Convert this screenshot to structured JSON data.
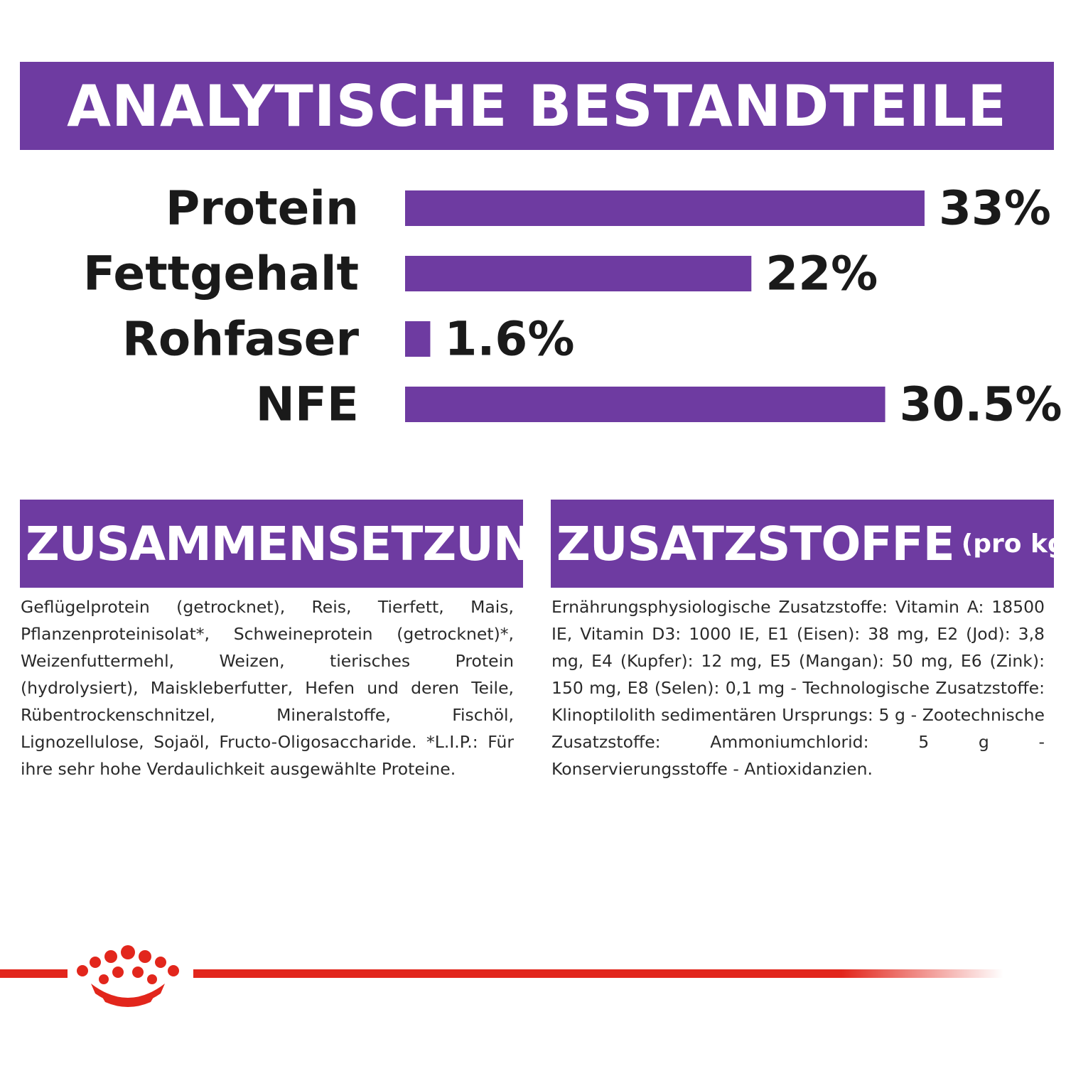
{
  "header": {
    "title": "ANALYTISCHE BESTANDTEILE"
  },
  "chart_data": {
    "type": "bar",
    "orientation": "horizontal",
    "categories": [
      "Protein",
      "Fettgehalt",
      "Rohfaser",
      "NFE"
    ],
    "values": [
      33,
      22,
      1.6,
      30.5
    ],
    "value_labels": [
      "33%",
      "22%",
      "1.6%",
      "30.5%"
    ],
    "title": "ANALYTISCHE BESTANDTEILE",
    "xlabel": "",
    "ylabel": "",
    "bar_color": "#6e3ba1"
  },
  "composition": {
    "title": "ZUSAMMENSETZUNG",
    "text": "Geflügelprotein (getrocknet), Reis, Tierfett, Mais, Pflanzenproteinisolat*, Schweineprotein (getrocknet)*, Weizenfuttermehl, Weizen, tierisches Protein (hydrolysiert), Maiskleberfutter, Hefen und deren Teile, Rübentrockenschnitzel, Mineralstoffe, Fischöl, Lignozellulose, Sojaöl, Fructo-Oligosaccharide. *L.I.P.: Für ihre sehr hohe Verdaulichkeit ausgewählte Proteine."
  },
  "additives": {
    "title": "ZUSATZSTOFFE",
    "title_suffix": "(pro kg)",
    "text": "Ernährungsphysiologische Zusatzstoffe: Vitamin A: 18500 IE, Vitamin D3: 1000 IE, E1 (Eisen): 38 mg, E2 (Jod): 3,8 mg, E4 (Kupfer): 12 mg, E5 (Mangan): 50 mg, E6 (Zink): 150 mg, E8 (Selen): 0,1 mg - Technologische Zusatzstoffe: Klinoptilolith sedimentären Ursprungs: 5 g - Zootechnische Zusatzstoffe: Ammoniumchlorid: 5 g - Konservierungsstoffe - Antioxidanzien."
  },
  "colors": {
    "accent": "#6e3ba1",
    "brand_red": "#e2261c"
  },
  "footer": {
    "logo_icon": "crown-icon"
  }
}
